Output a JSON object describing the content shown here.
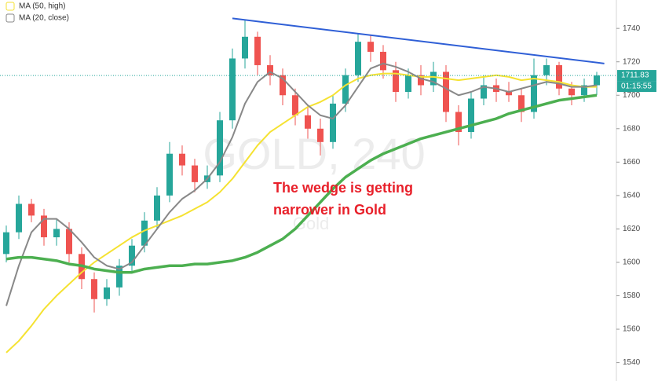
{
  "chart_data": {
    "type": "candlestick",
    "up_color": "#26a69a",
    "down_color": "#ef5350",
    "ylim": [
      1529,
      1757
    ],
    "yticks": [
      1540,
      1560,
      1580,
      1600,
      1620,
      1640,
      1660,
      1680,
      1700,
      1720,
      1740
    ],
    "watermark": "GOLD, 240",
    "watermark_sub": "Gold",
    "annotation": [
      "The wedge is getting",
      "narrower in Gold"
    ],
    "annotation_color": "#e8202a",
    "last_price": {
      "value": 1711.83,
      "countdown": "01:15:55",
      "color": "#26a69a"
    },
    "open": [
      1605,
      1618,
      1635,
      1628,
      1615,
      1620,
      1605,
      1590,
      1578,
      1585,
      1598,
      1610,
      1625,
      1640,
      1665,
      1658,
      1648,
      1652,
      1685,
      1722,
      1735,
      1718,
      1712,
      1700,
      1688,
      1680,
      1672,
      1695,
      1712,
      1732,
      1726,
      1715,
      1702,
      1712,
      1706,
      1714,
      1690,
      1678,
      1698,
      1706,
      1702,
      1700,
      1690,
      1712,
      1718,
      1704,
      1700,
      1706
    ],
    "high": [
      1622,
      1640,
      1638,
      1632,
      1626,
      1624,
      1609,
      1594,
      1590,
      1602,
      1614,
      1630,
      1645,
      1672,
      1670,
      1662,
      1658,
      1690,
      1728,
      1745,
      1738,
      1724,
      1716,
      1704,
      1694,
      1686,
      1700,
      1716,
      1737,
      1736,
      1730,
      1720,
      1716,
      1718,
      1720,
      1718,
      1694,
      1702,
      1712,
      1710,
      1708,
      1704,
      1722,
      1722,
      1720,
      1708,
      1710,
      1714
    ],
    "low": [
      1600,
      1614,
      1624,
      1610,
      1610,
      1600,
      1584,
      1570,
      1574,
      1580,
      1594,
      1606,
      1620,
      1636,
      1652,
      1642,
      1644,
      1648,
      1680,
      1716,
      1712,
      1706,
      1694,
      1682,
      1674,
      1664,
      1668,
      1690,
      1708,
      1720,
      1710,
      1696,
      1698,
      1700,
      1702,
      1684,
      1670,
      1674,
      1694,
      1696,
      1696,
      1684,
      1686,
      1706,
      1700,
      1694,
      1696,
      1700
    ],
    "close": [
      1618,
      1635,
      1628,
      1615,
      1620,
      1605,
      1590,
      1578,
      1585,
      1598,
      1610,
      1625,
      1640,
      1665,
      1658,
      1648,
      1652,
      1685,
      1722,
      1735,
      1718,
      1712,
      1700,
      1688,
      1680,
      1672,
      1695,
      1712,
      1732,
      1726,
      1715,
      1702,
      1712,
      1706,
      1714,
      1690,
      1678,
      1698,
      1706,
      1702,
      1700,
      1690,
      1712,
      1718,
      1704,
      1700,
      1706,
      1711.83
    ],
    "series": [
      {
        "name": "MA (50, high)",
        "color": "#f5e232",
        "width": 2,
        "values": [
          1546,
          1553,
          1562,
          1572,
          1580,
          1587,
          1594,
          1600,
          1605,
          1610,
          1615,
          1619,
          1622,
          1625,
          1628,
          1632,
          1636,
          1642,
          1650,
          1660,
          1670,
          1678,
          1683,
          1688,
          1693,
          1696,
          1700,
          1706,
          1710,
          1712,
          1713,
          1713,
          1712,
          1711,
          1711,
          1710,
          1709,
          1710,
          1711,
          1712,
          1711,
          1709,
          1710,
          1709,
          1708,
          1706,
          1705,
          1705
        ]
      },
      {
        "name": "MA (20, close)",
        "color": "#888888",
        "width": 2,
        "values": [
          1574,
          1598,
          1618,
          1626,
          1626,
          1620,
          1612,
          1603,
          1598,
          1596,
          1600,
          1610,
          1620,
          1630,
          1638,
          1643,
          1650,
          1660,
          1675,
          1695,
          1708,
          1714,
          1710,
          1702,
          1694,
          1688,
          1686,
          1694,
          1705,
          1716,
          1719,
          1717,
          1714,
          1710,
          1708,
          1704,
          1700,
          1702,
          1705,
          1704,
          1702,
          1704,
          1706,
          1708,
          1707,
          1705,
          1705,
          1706
        ]
      },
      {
        "color": "#4caf50",
        "width": 3.5,
        "values": [
          1602,
          1603,
          1603,
          1602,
          1601,
          1599,
          1598,
          1596,
          1595,
          1594,
          1594,
          1596,
          1597,
          1598,
          1598,
          1599,
          1599,
          1600,
          1601,
          1603,
          1606,
          1610,
          1614,
          1620,
          1628,
          1636,
          1644,
          1651,
          1656,
          1661,
          1665,
          1668,
          1671,
          1674,
          1676,
          1678,
          1680,
          1682,
          1684,
          1686,
          1689,
          1691,
          1693,
          1695,
          1697,
          1698,
          1699,
          1700
        ]
      }
    ],
    "trendline": {
      "color": "#2f5fd6",
      "x": [
        18,
        47.6
      ],
      "values": [
        1746,
        1719
      ]
    }
  }
}
